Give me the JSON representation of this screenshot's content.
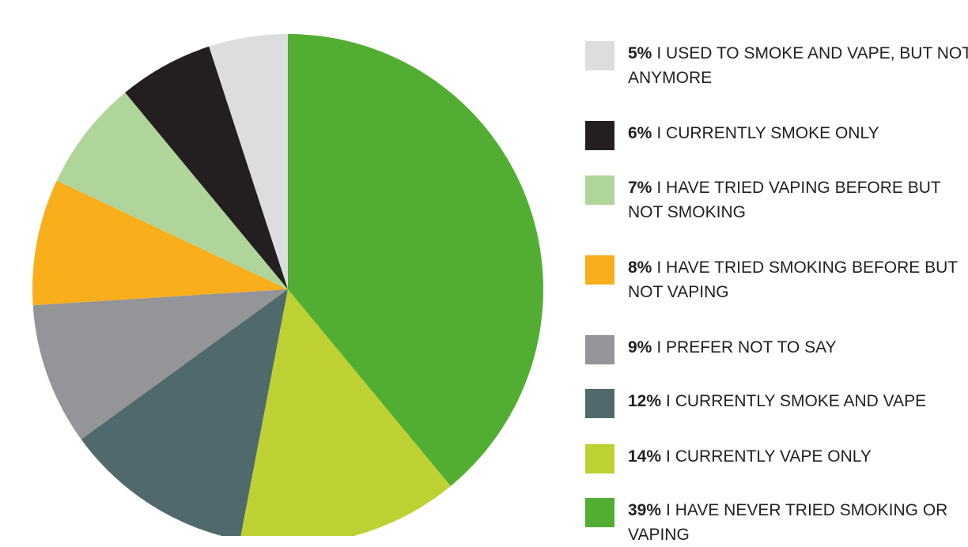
{
  "chart_data": {
    "type": "pie",
    "categories": [
      "I USED TO SMOKE AND VAPE, BUT NOT ANYMORE",
      "I CURRENTLY SMOKE ONLY",
      "I HAVE TRIED VAPING BEFORE BUT NOT SMOKING",
      "I HAVE TRIED SMOKING BEFORE BUT NOT VAPING",
      "I PREFER NOT TO SAY",
      "I CURRENTLY SMOKE AND VAPE",
      "I CURRENTLY VAPE ONLY",
      "I HAVE NEVER TRIED SMOKING OR VAPING"
    ],
    "values": [
      5,
      6,
      7,
      8,
      9,
      12,
      14,
      39
    ],
    "value_labels": [
      "5%",
      "6%",
      "7%",
      "8%",
      "9%",
      "12%",
      "14%",
      "39%"
    ],
    "colors": [
      "#dcdddf",
      "#231f20",
      "#afd59b",
      "#f9ae1b",
      "#939598",
      "#50696d",
      "#bdd232",
      "#52ae32"
    ]
  }
}
